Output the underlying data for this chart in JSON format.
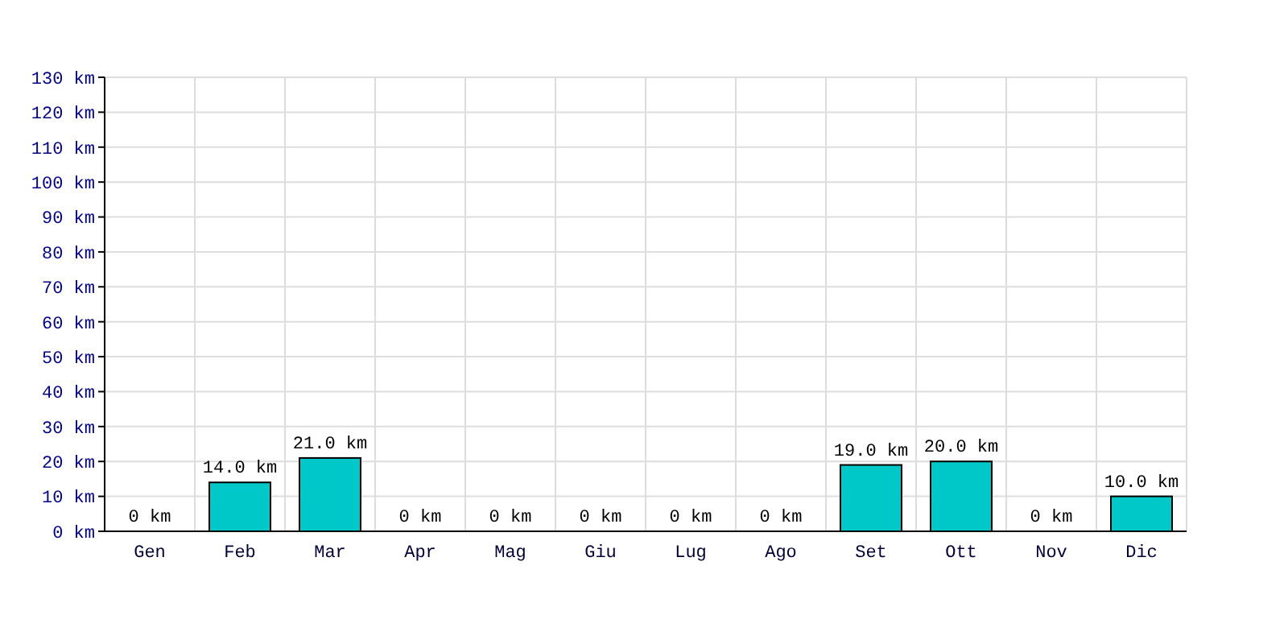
{
  "chart_data": {
    "type": "bar",
    "categories": [
      "Gen",
      "Feb",
      "Mar",
      "Apr",
      "Mag",
      "Giu",
      "Lug",
      "Ago",
      "Set",
      "Ott",
      "Nov",
      "Dic"
    ],
    "values": [
      0,
      14,
      21,
      0,
      0,
      0,
      0,
      0,
      19,
      20,
      0,
      10
    ],
    "value_labels": [
      "0 km",
      "14.0 km",
      "21.0 km",
      "0 km",
      "0 km",
      "0 km",
      "0 km",
      "0 km",
      "19.0 km",
      "20.0 km",
      "0 km",
      "10.0 km"
    ],
    "color": "#00c8c8",
    "ylim": [
      0,
      130
    ],
    "yticks": [
      {
        "value": 0,
        "label": "0 km"
      },
      {
        "value": 10,
        "label": "10 km"
      },
      {
        "value": 20,
        "label": "20 km"
      },
      {
        "value": 30,
        "label": "30 km"
      },
      {
        "value": 40,
        "label": "40 km"
      },
      {
        "value": 50,
        "label": "50 km"
      },
      {
        "value": 60,
        "label": "60 km"
      },
      {
        "value": 70,
        "label": "70 km"
      },
      {
        "value": 80,
        "label": "80 km"
      },
      {
        "value": 90,
        "label": "90 km"
      },
      {
        "value": 100,
        "label": "100 km"
      },
      {
        "value": 110,
        "label": "110 km"
      },
      {
        "value": 120,
        "label": "120 km"
      },
      {
        "value": 130,
        "label": "130 km"
      }
    ],
    "grid": true
  }
}
